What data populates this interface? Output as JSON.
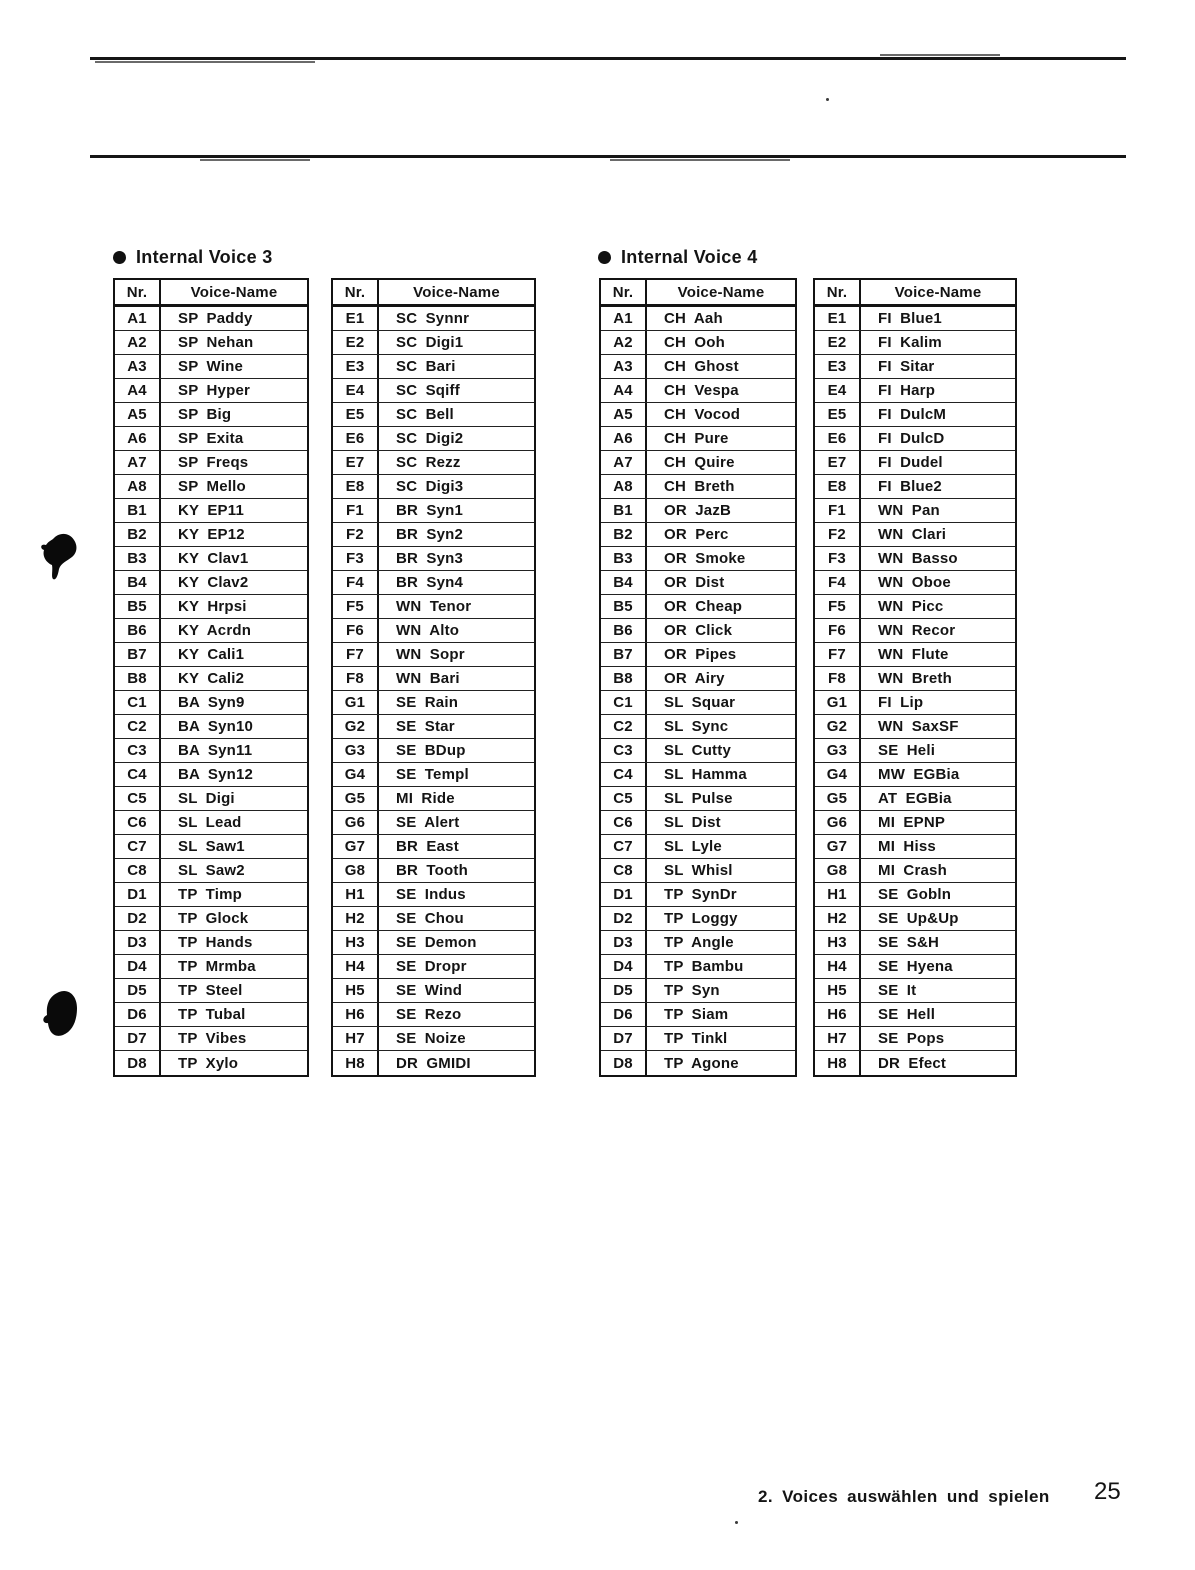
{
  "sections": [
    {
      "title": "Internal Voice 3",
      "tables": [
        {
          "headers": [
            "Nr.",
            "Voice-Name"
          ],
          "rows": [
            [
              "A1",
              "SP Paddy"
            ],
            [
              "A2",
              "SP Nehan"
            ],
            [
              "A3",
              "SP Wine"
            ],
            [
              "A4",
              "SP Hyper"
            ],
            [
              "A5",
              "SP Big"
            ],
            [
              "A6",
              "SP Exita"
            ],
            [
              "A7",
              "SP Freqs"
            ],
            [
              "A8",
              "SP Mello"
            ],
            [
              "B1",
              "KY EP11"
            ],
            [
              "B2",
              "KY EP12"
            ],
            [
              "B3",
              "KY Clav1"
            ],
            [
              "B4",
              "KY Clav2"
            ],
            [
              "B5",
              "KY Hrpsi"
            ],
            [
              "B6",
              "KY Acrdn"
            ],
            [
              "B7",
              "KY Cali1"
            ],
            [
              "B8",
              "KY Cali2"
            ],
            [
              "C1",
              "BA Syn9"
            ],
            [
              "C2",
              "BA Syn10"
            ],
            [
              "C3",
              "BA Syn11"
            ],
            [
              "C4",
              "BA Syn12"
            ],
            [
              "C5",
              "SL Digi"
            ],
            [
              "C6",
              "SL Lead"
            ],
            [
              "C7",
              "SL Saw1"
            ],
            [
              "C8",
              "SL Saw2"
            ],
            [
              "D1",
              "TP Timp"
            ],
            [
              "D2",
              "TP Glock"
            ],
            [
              "D3",
              "TP Hands"
            ],
            [
              "D4",
              "TP Mrmba"
            ],
            [
              "D5",
              "TP Steel"
            ],
            [
              "D6",
              "TP Tubal"
            ],
            [
              "D7",
              "TP Vibes"
            ],
            [
              "D8",
              "TP Xylo"
            ]
          ]
        },
        {
          "headers": [
            "Nr.",
            "Voice-Name"
          ],
          "rows": [
            [
              "E1",
              "SC Synnr"
            ],
            [
              "E2",
              "SC Digi1"
            ],
            [
              "E3",
              "SC Bari"
            ],
            [
              "E4",
              "SC Sqiff"
            ],
            [
              "E5",
              "SC Bell"
            ],
            [
              "E6",
              "SC Digi2"
            ],
            [
              "E7",
              "SC Rezz"
            ],
            [
              "E8",
              "SC Digi3"
            ],
            [
              "F1",
              "BR Syn1"
            ],
            [
              "F2",
              "BR Syn2"
            ],
            [
              "F3",
              "BR Syn3"
            ],
            [
              "F4",
              "BR Syn4"
            ],
            [
              "F5",
              "WN Tenor"
            ],
            [
              "F6",
              "WN Alto"
            ],
            [
              "F7",
              "WN Sopr"
            ],
            [
              "F8",
              "WN Bari"
            ],
            [
              "G1",
              "SE Rain"
            ],
            [
              "G2",
              "SE Star"
            ],
            [
              "G3",
              "SE BDup"
            ],
            [
              "G4",
              "SE Templ"
            ],
            [
              "G5",
              "MI Ride"
            ],
            [
              "G6",
              "SE Alert"
            ],
            [
              "G7",
              "BR East"
            ],
            [
              "G8",
              "BR Tooth"
            ],
            [
              "H1",
              "SE Indus"
            ],
            [
              "H2",
              "SE Chou"
            ],
            [
              "H3",
              "SE Demon"
            ],
            [
              "H4",
              "SE Dropr"
            ],
            [
              "H5",
              "SE Wind"
            ],
            [
              "H6",
              "SE Rezo"
            ],
            [
              "H7",
              "SE Noize"
            ],
            [
              "H8",
              "DR GMIDI"
            ]
          ]
        }
      ]
    },
    {
      "title": "Internal Voice 4",
      "tables": [
        {
          "headers": [
            "Nr.",
            "Voice-Name"
          ],
          "rows": [
            [
              "A1",
              "CH Aah"
            ],
            [
              "A2",
              "CH Ooh"
            ],
            [
              "A3",
              "CH Ghost"
            ],
            [
              "A4",
              "CH Vespa"
            ],
            [
              "A5",
              "CH Vocod"
            ],
            [
              "A6",
              "CH Pure"
            ],
            [
              "A7",
              "CH Quire"
            ],
            [
              "A8",
              "CH Breth"
            ],
            [
              "B1",
              "OR JazB"
            ],
            [
              "B2",
              "OR Perc"
            ],
            [
              "B3",
              "OR Smoke"
            ],
            [
              "B4",
              "OR Dist"
            ],
            [
              "B5",
              "OR Cheap"
            ],
            [
              "B6",
              "OR Click"
            ],
            [
              "B7",
              "OR Pipes"
            ],
            [
              "B8",
              "OR Airy"
            ],
            [
              "C1",
              "SL Squar"
            ],
            [
              "C2",
              "SL Sync"
            ],
            [
              "C3",
              "SL Cutty"
            ],
            [
              "C4",
              "SL Hamma"
            ],
            [
              "C5",
              "SL Pulse"
            ],
            [
              "C6",
              "SL Dist"
            ],
            [
              "C7",
              "SL Lyle"
            ],
            [
              "C8",
              "SL Whisl"
            ],
            [
              "D1",
              "TP SynDr"
            ],
            [
              "D2",
              "TP Loggy"
            ],
            [
              "D3",
              "TP Angle"
            ],
            [
              "D4",
              "TP Bambu"
            ],
            [
              "D5",
              "TP Syn"
            ],
            [
              "D6",
              "TP Siam"
            ],
            [
              "D7",
              "TP Tinkl"
            ],
            [
              "D8",
              "TP Agone"
            ]
          ]
        },
        {
          "headers": [
            "Nr.",
            "Voice-Name"
          ],
          "rows": [
            [
              "E1",
              "FI Blue1"
            ],
            [
              "E2",
              "FI Kalim"
            ],
            [
              "E3",
              "FI Sitar"
            ],
            [
              "E4",
              "FI Harp"
            ],
            [
              "E5",
              "FI DulcM"
            ],
            [
              "E6",
              "FI DulcD"
            ],
            [
              "E7",
              "FI Dudel"
            ],
            [
              "E8",
              "FI Blue2"
            ],
            [
              "F1",
              "WN Pan"
            ],
            [
              "F2",
              "WN Clari"
            ],
            [
              "F3",
              "WN Basso"
            ],
            [
              "F4",
              "WN Oboe"
            ],
            [
              "F5",
              "WN Picc"
            ],
            [
              "F6",
              "WN Recor"
            ],
            [
              "F7",
              "WN Flute"
            ],
            [
              "F8",
              "WN Breth"
            ],
            [
              "G1",
              "FI Lip"
            ],
            [
              "G2",
              "WN SaxSF"
            ],
            [
              "G3",
              "SE Heli"
            ],
            [
              "G4",
              "MW EGBia"
            ],
            [
              "G5",
              "AT EGBia"
            ],
            [
              "G6",
              "MI EPNP"
            ],
            [
              "G7",
              "MI Hiss"
            ],
            [
              "G8",
              "MI Crash"
            ],
            [
              "H1",
              "SE Gobln"
            ],
            [
              "H2",
              "SE Up&Up"
            ],
            [
              "H3",
              "SE S&H"
            ],
            [
              "H4",
              "SE Hyena"
            ],
            [
              "H5",
              "SE It"
            ],
            [
              "H6",
              "SE Hell"
            ],
            [
              "H7",
              "SE Pops"
            ],
            [
              "H8",
              "DR Efect"
            ]
          ]
        }
      ]
    }
  ],
  "footer": {
    "section_label": "2. Voices auswählen und spielen",
    "page_number": "25"
  },
  "colors": {
    "ink": "#141414",
    "paper": "#ffffff"
  }
}
